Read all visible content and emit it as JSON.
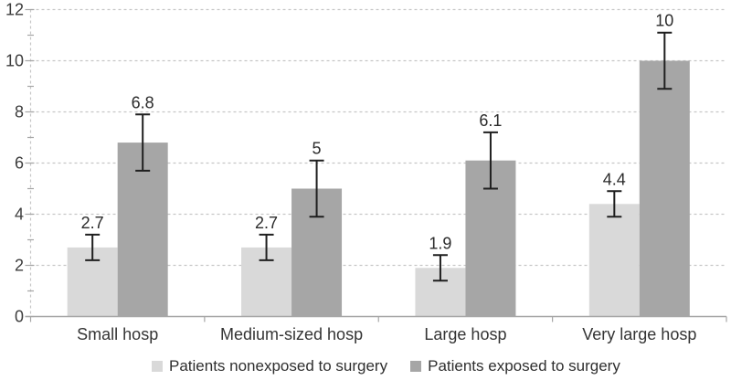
{
  "chart_data": {
    "type": "bar",
    "title": "",
    "xlabel": "",
    "ylabel": "",
    "categories": [
      "Small hosp",
      "Medium-sized hosp",
      "Large hosp",
      "Very large hosp"
    ],
    "series": [
      {
        "name": "Patients nonexposed to surgery",
        "color": "#d9d9d9",
        "values": [
          2.7,
          2.7,
          1.9,
          4.4
        ],
        "labels": [
          "2.7",
          "2.7",
          "1.9",
          "4.4"
        ],
        "error_low": [
          2.2,
          2.2,
          1.4,
          3.9
        ],
        "error_high": [
          3.2,
          3.2,
          2.4,
          4.9
        ]
      },
      {
        "name": "Patients exposed to surgery",
        "color": "#a6a6a6",
        "values": [
          6.8,
          5,
          6.1,
          10
        ],
        "labels": [
          "6.8",
          "5",
          "6.1",
          "10"
        ],
        "error_low": [
          5.7,
          3.9,
          5.0,
          8.9
        ],
        "error_high": [
          7.9,
          6.1,
          7.2,
          11.1
        ]
      }
    ],
    "y_axis": {
      "min": 0,
      "max": 12,
      "major_step": 2,
      "minor_step": 1,
      "tick_labels": [
        "0",
        "2",
        "4",
        "6",
        "8",
        "10",
        "12"
      ]
    },
    "grid": "horizontal-dashed",
    "legend_position": "bottom",
    "colors": {
      "gridline": "#c6c6c6",
      "axis_line": "#a6a6a6",
      "tick_text": "#3d3d3d",
      "category_text": "#343434",
      "data_label_text": "#2b2b2b",
      "error_bar": "#1f1f1f",
      "background": "#ffffff"
    }
  }
}
